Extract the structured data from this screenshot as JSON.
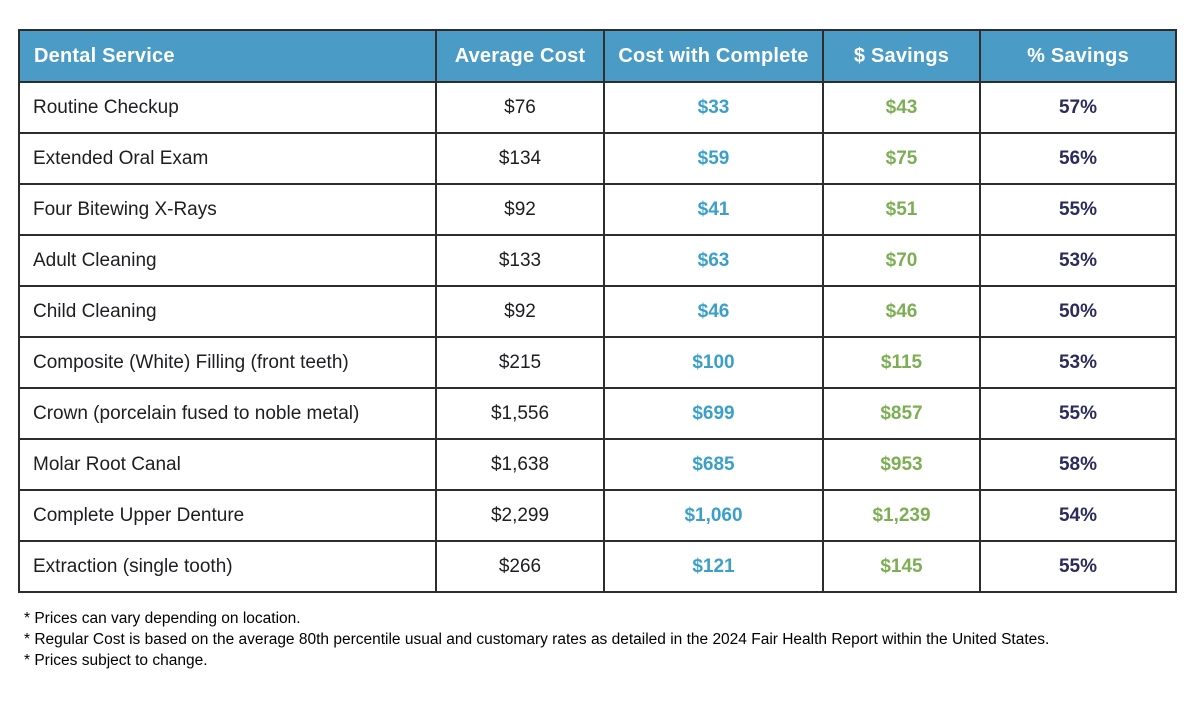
{
  "table": {
    "columns": [
      {
        "label": "Dental Service"
      },
      {
        "label": "Average Cost"
      },
      {
        "label": "Cost with Complete"
      },
      {
        "label": "$ Savings"
      },
      {
        "label": "% Savings"
      }
    ],
    "rows": [
      {
        "service": "Routine Checkup",
        "average_cost": "$76",
        "cost_with_complete": "$33",
        "savings_dollar": "$43",
        "savings_percent": "57%"
      },
      {
        "service": "Extended Oral Exam",
        "average_cost": "$134",
        "cost_with_complete": "$59",
        "savings_dollar": "$75",
        "savings_percent": "56%"
      },
      {
        "service": "Four Bitewing X-Rays",
        "average_cost": "$92",
        "cost_with_complete": "$41",
        "savings_dollar": "$51",
        "savings_percent": "55%"
      },
      {
        "service": "Adult Cleaning",
        "average_cost": "$133",
        "cost_with_complete": "$63",
        "savings_dollar": "$70",
        "savings_percent": "53%"
      },
      {
        "service": "Child Cleaning",
        "average_cost": "$92",
        "cost_with_complete": "$46",
        "savings_dollar": "$46",
        "savings_percent": "50%"
      },
      {
        "service": "Composite (White) Filling (front teeth)",
        "average_cost": "$215",
        "cost_with_complete": "$100",
        "savings_dollar": "$115",
        "savings_percent": "53%"
      },
      {
        "service": "Crown (porcelain fused to noble metal)",
        "average_cost": "$1,556",
        "cost_with_complete": "$699",
        "savings_dollar": "$857",
        "savings_percent": "55%"
      },
      {
        "service": "Molar Root Canal",
        "average_cost": "$1,638",
        "cost_with_complete": "$685",
        "savings_dollar": "$953",
        "savings_percent": "58%"
      },
      {
        "service": "Complete Upper Denture",
        "average_cost": "$2,299",
        "cost_with_complete": "$1,060",
        "savings_dollar": "$1,239",
        "savings_percent": "54%"
      },
      {
        "service": "Extraction (single tooth)",
        "average_cost": "$266",
        "cost_with_complete": "$121",
        "savings_dollar": "$145",
        "savings_percent": "55%"
      }
    ]
  },
  "footnotes": [
    "* Prices can vary depending on location.",
    "* Regular Cost is based on the average 80th percentile usual and customary rates as detailed in the 2024 Fair Health Report within the United States.",
    "* Prices subject to change."
  ],
  "colors": {
    "header_bg": "#4A9CC6",
    "header_text": "#FFFFFF",
    "cost_with_complete_text": "#3BA0C9",
    "savings_dollar_text": "#7CAE53",
    "savings_percent_text": "#2B2B5C",
    "body_text": "#1D1D22",
    "border": "#2D2D2D"
  }
}
